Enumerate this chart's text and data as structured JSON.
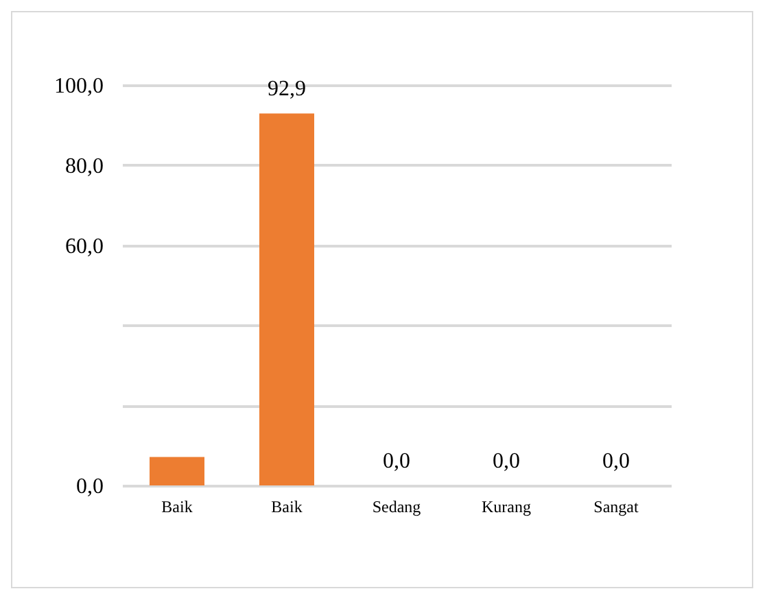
{
  "chart_data": {
    "type": "bar",
    "categories": [
      "Baik",
      "Baik",
      "Sedang",
      "Kurang",
      "Sangat"
    ],
    "values": [
      7.1,
      92.9,
      0,
      0,
      0
    ],
    "color": "#ed7d31",
    "value_labels": [
      null,
      "92,9",
      "0,0",
      "0,0",
      "0,0"
    ],
    "ylim": [
      0,
      100
    ],
    "yticks": [
      {
        "value": 0,
        "label": "0,0"
      },
      {
        "value": 20,
        "label": null
      },
      {
        "value": 40,
        "label": null
      },
      {
        "value": 60,
        "label": "60,0"
      },
      {
        "value": 80,
        "label": "80,0"
      },
      {
        "value": 100,
        "label": "100,0"
      }
    ],
    "grid": true
  }
}
